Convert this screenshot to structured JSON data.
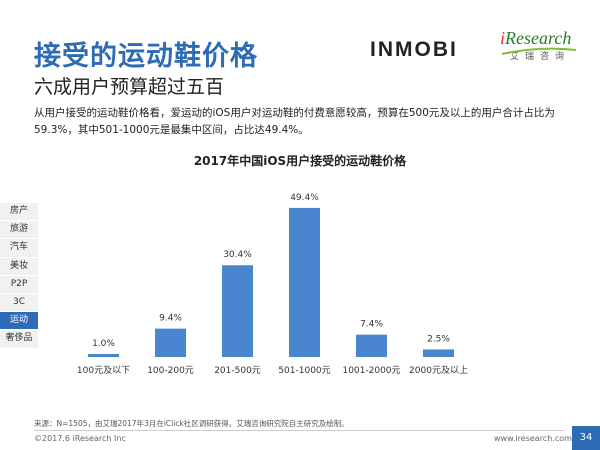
{
  "header": {
    "title": "接受的运动鞋价格",
    "subtitle": "六成用户预算超过五百"
  },
  "logos": {
    "inmobi": "INMOBI",
    "iresearch_i": "i",
    "iresearch": "Research",
    "iresearch_cn": "艾瑞咨询"
  },
  "description": "从用户接受的运动鞋价格看，爱运动的iOS用户对运动鞋的付费意愿较高，预算在500元及以上的用户合计占比为59.3%，其中501-1000元是最集中区间，占比达49.4%。",
  "sidebar": {
    "items": [
      "房产",
      "旅游",
      "汽车",
      "美妆",
      "P2P",
      "3C",
      "运动",
      "奢侈品"
    ],
    "active": "运动"
  },
  "chart_data": {
    "type": "bar",
    "title": "2017年中国iOS用户接受的运动鞋价格",
    "categories": [
      "100元及以下",
      "100-200元",
      "201-500元",
      "501-1000元",
      "1001-2000元",
      "2000元及以上"
    ],
    "values": [
      1.0,
      9.4,
      30.4,
      49.4,
      7.4,
      2.5
    ],
    "value_labels": [
      "1.0%",
      "9.4%",
      "30.4%",
      "49.4%",
      "7.4%",
      "2.5%"
    ],
    "unit": "%",
    "ylim": [
      0,
      55
    ],
    "color": "#4a86cf",
    "xlabel": "",
    "ylabel": ""
  },
  "footer": {
    "source": "来源：N=1505，由艾瑞2017年3月在iClick社区调研获得。艾瑞咨询研究院自主研究及绘制。",
    "copyright": "©2017.6 iResearch Inc",
    "url": "www.iresearch.com.cn",
    "page": "34"
  }
}
